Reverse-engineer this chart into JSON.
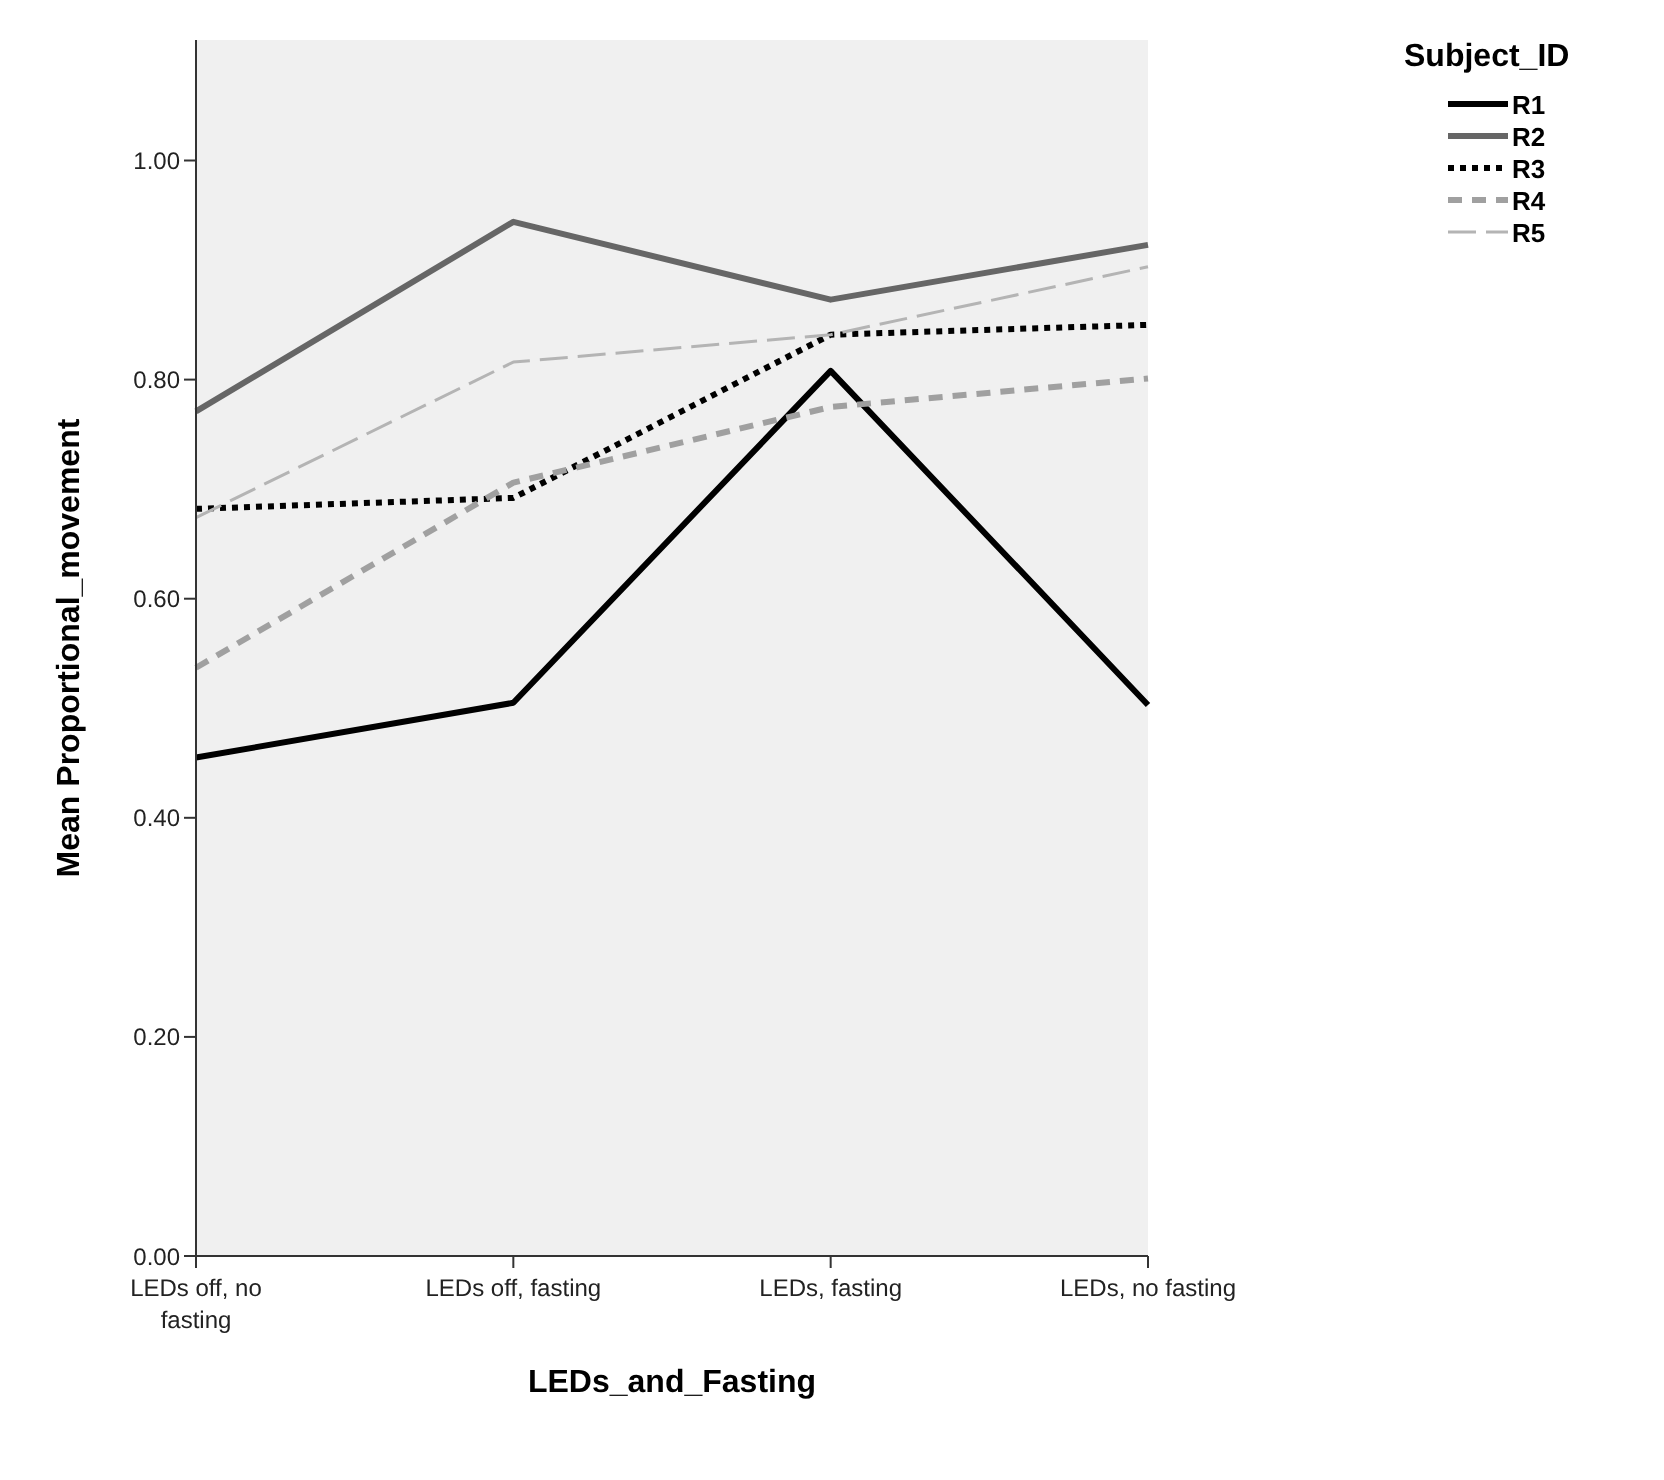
{
  "chart_data": {
    "type": "line",
    "xlabel": "LEDs_and_Fasting",
    "ylabel": "Mean Proportional_movement",
    "legend_title": "Subject_ID",
    "legend": "top right",
    "grid": false,
    "marker": "none",
    "categories": [
      "LEDs off, no fasting",
      "LEDs off, fasting",
      "LEDs, fasting",
      "LEDs, no fasting"
    ],
    "ylim": [
      0,
      1.11
    ],
    "yticks": [
      {
        "value": 0,
        "label": "0.00"
      },
      {
        "value": 0.2,
        "label": "0.20"
      },
      {
        "value": 0.4,
        "label": "0.40"
      },
      {
        "value": 0.6,
        "label": "0.60"
      },
      {
        "value": 0.8,
        "label": "0.80"
      },
      {
        "value": 1,
        "label": "1.00"
      }
    ],
    "series": [
      {
        "name": "R1",
        "color": "#000000",
        "line_style": "solid",
        "values": [
          0.455,
          0.505,
          0.808,
          0.503
        ]
      },
      {
        "name": "R2",
        "color": "#666666",
        "line_style": "solid",
        "values": [
          0.771,
          0.944,
          0.873,
          0.923
        ]
      },
      {
        "name": "R3",
        "color": "#000000",
        "line_style": "dotted",
        "values": [
          0.682,
          0.692,
          0.841,
          0.85
        ]
      },
      {
        "name": "R4",
        "color": "#a0a0a0",
        "line_style": "dashed",
        "values": [
          0.537,
          0.706,
          0.775,
          0.801
        ]
      },
      {
        "name": "R5",
        "color": "#b4b4b4",
        "line_style": "longdash",
        "values": [
          0.674,
          0.816,
          0.841,
          0.903
        ]
      }
    ]
  }
}
